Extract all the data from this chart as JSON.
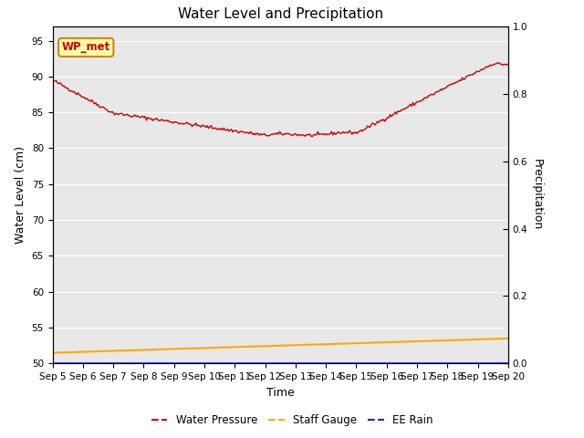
{
  "title": "Water Level and Precipitation",
  "xlabel": "Time",
  "ylabel_left": "Water Level (cm)",
  "ylabel_right": "Precipitation",
  "ylim_left": [
    50,
    97
  ],
  "ylim_right": [
    0.0,
    1.0
  ],
  "yticks_left": [
    50,
    55,
    60,
    65,
    70,
    75,
    80,
    85,
    90,
    95
  ],
  "yticks_right": [
    0.0,
    0.2,
    0.4,
    0.6,
    0.8,
    1.0
  ],
  "x_tick_labels": [
    "Sep 5",
    "Sep 6",
    "Sep 7",
    "Sep 8",
    "Sep 9",
    "Sep 10",
    "Sep 11",
    "Sep 12",
    "Sep 13",
    "Sep 14",
    "Sep 15",
    "Sep 16",
    "Sep 17",
    "Sep 18",
    "Sep 19",
    "Sep 20"
  ],
  "background_color": "#e8e8e8",
  "water_pressure_color": "#cc0000",
  "staff_gauge_color": "#ffaa00",
  "ee_rain_color": "#2222cc",
  "annotation_text": "WP_met",
  "annotation_bg": "#ffffaa",
  "annotation_border": "#cc8800",
  "title_fontsize": 11,
  "axis_fontsize": 9,
  "tick_fontsize": 7.5
}
